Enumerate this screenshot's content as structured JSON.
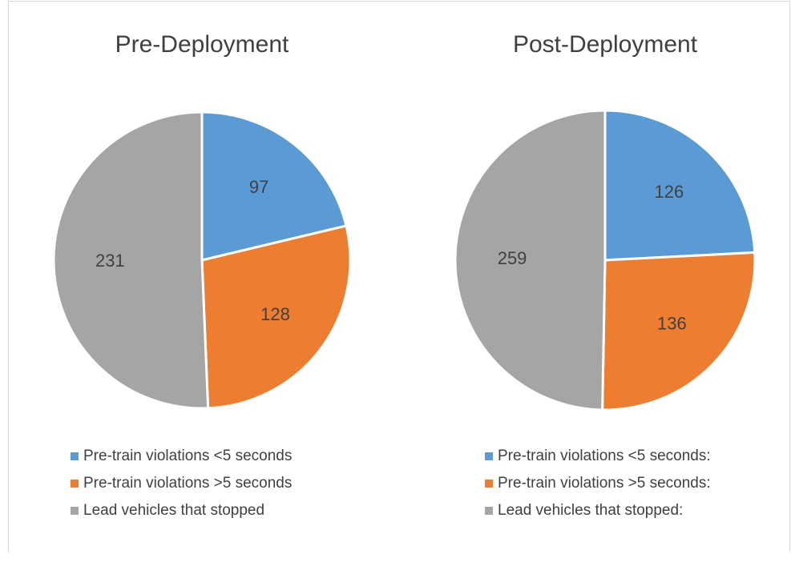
{
  "chart_data": [
    {
      "type": "pie",
      "title": "Pre-Deployment",
      "categories": [
        "Pre-train violations <5 seconds",
        "Pre-train violations >5 seconds",
        "Lead vehicles that stopped"
      ],
      "values": [
        97,
        128,
        231
      ],
      "colors": [
        "#5b9bd5",
        "#ed7d31",
        "#a5a5a5"
      ]
    },
    {
      "type": "pie",
      "title": "Post-Deployment",
      "categories": [
        "Pre-train violations <5 seconds:",
        "Pre-train violations >5 seconds:",
        "Lead vehicles that stopped:"
      ],
      "values": [
        126,
        136,
        259
      ],
      "colors": [
        "#5b9bd5",
        "#ed7d31",
        "#a5a5a5"
      ]
    }
  ]
}
